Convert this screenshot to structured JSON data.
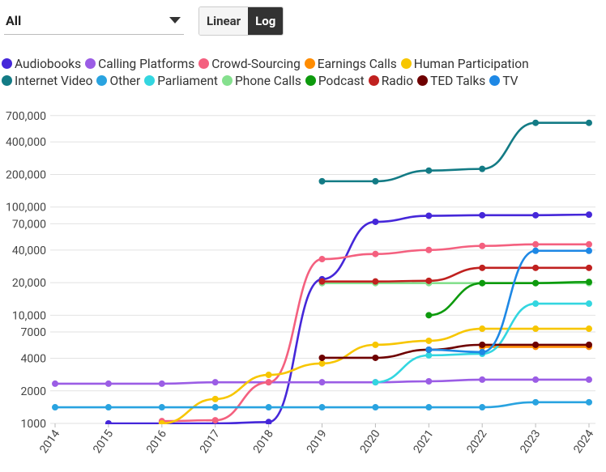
{
  "controls": {
    "dropdown": "All",
    "scale_buttons": [
      "Linear",
      "Log"
    ]
  },
  "chart_data": {
    "type": "line",
    "log_y": true,
    "grid": true,
    "x": [
      2014,
      2015,
      2016,
      2017,
      2018,
      2019,
      2020,
      2021,
      2022,
      2023,
      2024
    ],
    "xlim": [
      2014,
      2024
    ],
    "xticks": [
      2014,
      2015,
      2016,
      2017,
      2018,
      2019,
      2020,
      2021,
      2022,
      2023,
      2024
    ],
    "ylim": [
      1000,
      800000
    ],
    "yticks": [
      1000,
      2000,
      4000,
      7000,
      {
        "value": 10000,
        "label": "10,000"
      },
      {
        "value": 20000,
        "label": "20,000"
      },
      {
        "value": 40000,
        "label": "40,000"
      },
      {
        "value": 70000,
        "label": "70,000"
      },
      {
        "value": 100000,
        "label": "100,000"
      },
      {
        "value": 200000,
        "label": "200,000"
      },
      {
        "value": 400000,
        "label": "400,000"
      },
      {
        "value": 700000,
        "label": "700,000"
      }
    ],
    "series": [
      {
        "name": "Audiobooks",
        "color": "#4527d9",
        "values": [
          null,
          1000,
          1000,
          1000,
          1030,
          21500,
          73000,
          83000,
          84000,
          84000,
          85000
        ]
      },
      {
        "name": "Calling Platforms",
        "color": "#9b5de5",
        "values": [
          2330,
          2330,
          2330,
          2400,
          2400,
          2400,
          2400,
          2450,
          2540,
          2540,
          2540
        ]
      },
      {
        "name": "Crowd-Sourcing",
        "color": "#f4607f",
        "values": [
          null,
          null,
          1050,
          1070,
          2400,
          33000,
          36800,
          40100,
          43700,
          45200,
          45200
        ]
      },
      {
        "name": "Earnings Calls",
        "color": "#ff8c00",
        "values": [
          null,
          null,
          null,
          null,
          null,
          null,
          null,
          null,
          5100,
          5100,
          5100
        ]
      },
      {
        "name": "Human Participation",
        "color": "#f7c600",
        "values": [
          null,
          null,
          1000,
          1680,
          2810,
          3580,
          5330,
          5800,
          7500,
          7500,
          7500
        ]
      },
      {
        "name": "Internet Video",
        "color": "#137b85",
        "values": [
          null,
          null,
          null,
          null,
          null,
          173000,
          173000,
          217000,
          225000,
          600000,
          600000
        ]
      },
      {
        "name": "Other",
        "color": "#29a3e0",
        "values": [
          1410,
          1410,
          1410,
          1410,
          1410,
          1410,
          1410,
          1410,
          1410,
          1570,
          1570
        ]
      },
      {
        "name": "Parliament",
        "color": "#33d6e0",
        "values": [
          null,
          null,
          null,
          null,
          null,
          null,
          2400,
          4260,
          4400,
          12800,
          12800
        ]
      },
      {
        "name": "Phone Calls",
        "color": "#85e08e",
        "values": [
          null,
          null,
          null,
          null,
          null,
          19800,
          19800,
          19800,
          19800,
          19800,
          19800
        ]
      },
      {
        "name": "Podcast",
        "color": "#0d9a0d",
        "values": [
          null,
          null,
          null,
          null,
          null,
          null,
          null,
          10000,
          19800,
          19800,
          20300
        ]
      },
      {
        "name": "Radio",
        "color": "#c0211f",
        "values": [
          null,
          null,
          null,
          null,
          null,
          20500,
          20500,
          20800,
          27400,
          27400,
          27400
        ]
      },
      {
        "name": "TED Talks",
        "color": "#6e0000",
        "values": [
          null,
          null,
          null,
          null,
          null,
          4040,
          4040,
          4800,
          5330,
          5330,
          5330
        ]
      },
      {
        "name": "TV",
        "color": "#1e88e5",
        "values": [
          null,
          null,
          null,
          null,
          null,
          null,
          null,
          4800,
          4560,
          39400,
          39400
        ]
      }
    ]
  }
}
